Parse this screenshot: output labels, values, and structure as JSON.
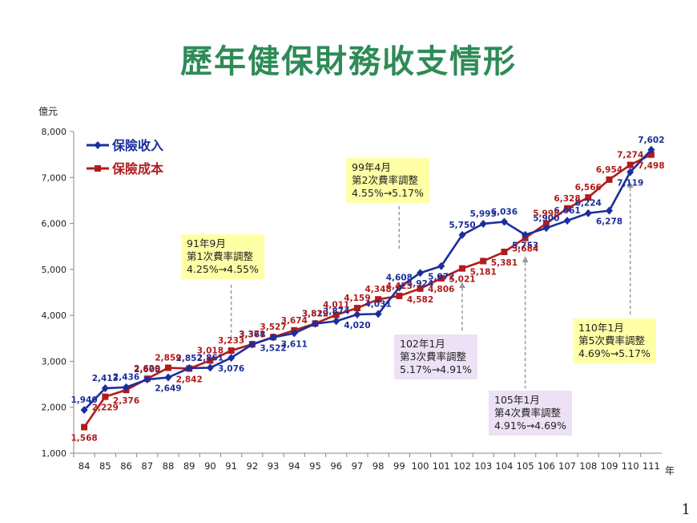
{
  "title": "歷年健保財務收支情形",
  "page_number": "1",
  "colors": {
    "title": "#2e8b57",
    "income": "#1c2e9c",
    "cost": "#b01c1c",
    "yellow_note": "#ffffa6",
    "purple_note": "#ece1f5"
  },
  "chart_data": {
    "type": "line",
    "title": "歷年健保財務收支情形",
    "xlabel": "年",
    "ylabel": "億元",
    "ylim": [
      1000,
      8000
    ],
    "yticks": [
      "1,000",
      "2,000",
      "3,000",
      "4,000",
      "5,000",
      "6,000",
      "7,000",
      "8,000"
    ],
    "grid": false,
    "legend_position": "top-left",
    "categories": [
      "84",
      "85",
      "86",
      "87",
      "88",
      "89",
      "90",
      "91",
      "92",
      "93",
      "94",
      "95",
      "96",
      "97",
      "98",
      "99",
      "100",
      "101",
      "102",
      "103",
      "104",
      "105",
      "106",
      "107",
      "108",
      "109",
      "110",
      "111"
    ],
    "series": [
      {
        "name": "保險收入",
        "color": "#1c2e9c",
        "marker": "diamond",
        "values": [
          1940,
          2413,
          2436,
          2605,
          2649,
          2852,
          2861,
          3076,
          3368,
          3522,
          3611,
          3819,
          3874,
          4020,
          4031,
          4608,
          4924,
          5072,
          5750,
          5993,
          6036,
          5753,
          5900,
          6061,
          6224,
          6278,
          7119,
          7602
        ],
        "labels": [
          "1,940",
          "2,413",
          "2,436",
          "2,605",
          "2,649",
          "2,852",
          "2,861",
          "3,076",
          "3,368",
          "3,522",
          "3,611",
          "3,819",
          "3,874",
          "4,020",
          "4,031",
          "4,608",
          "4,924",
          "5,072",
          "5,750",
          "5,993",
          "6,036",
          "5,753",
          "5,900",
          "6,061",
          "6,224",
          "6,278",
          "7,119",
          "7,602"
        ]
      },
      {
        "name": "保險成本",
        "color": "#b01c1c",
        "marker": "square",
        "values": [
          1568,
          2229,
          2376,
          2620,
          2859,
          2842,
          3018,
          3233,
          3371,
          3527,
          3674,
          3822,
          4011,
          4159,
          4348,
          4423,
          4582,
          4806,
          5021,
          5181,
          5381,
          5684,
          5998,
          6328,
          6566,
          6954,
          7274,
          7498
        ],
        "labels": [
          "1,568",
          "2,229",
          "2,376",
          "2,620",
          "2,859",
          "2,842",
          "3,018",
          "3,233",
          "3,371",
          "3,527",
          "3,674",
          "3,822",
          "4,011",
          "4,159",
          "4,348",
          "4,423",
          "4,582",
          "4,806",
          "5,021",
          "5,181",
          "5,381",
          "5,684",
          "5,998",
          "6,328",
          "6,566",
          "6,954",
          "7,274",
          "7,498"
        ]
      }
    ],
    "annotations": [
      {
        "year": "91",
        "lines": [
          "91年9月",
          "第1次費率調整",
          "4.25%→4.55%"
        ],
        "style": "yellow"
      },
      {
        "year": "99",
        "lines": [
          "99年4月",
          "第2次費率調整",
          "4.55%→5.17%"
        ],
        "style": "yellow"
      },
      {
        "year": "102",
        "lines": [
          "102年1月",
          "第3次費率調整",
          "5.17%→4.91%"
        ],
        "style": "purple"
      },
      {
        "year": "105",
        "lines": [
          "105年1月",
          "第4次費率調整",
          "4.91%→4.69%"
        ],
        "style": "purple"
      },
      {
        "year": "110",
        "lines": [
          "110年1月",
          "第5次費率調整",
          "4.69%→5.17%"
        ],
        "style": "yellow"
      }
    ]
  }
}
